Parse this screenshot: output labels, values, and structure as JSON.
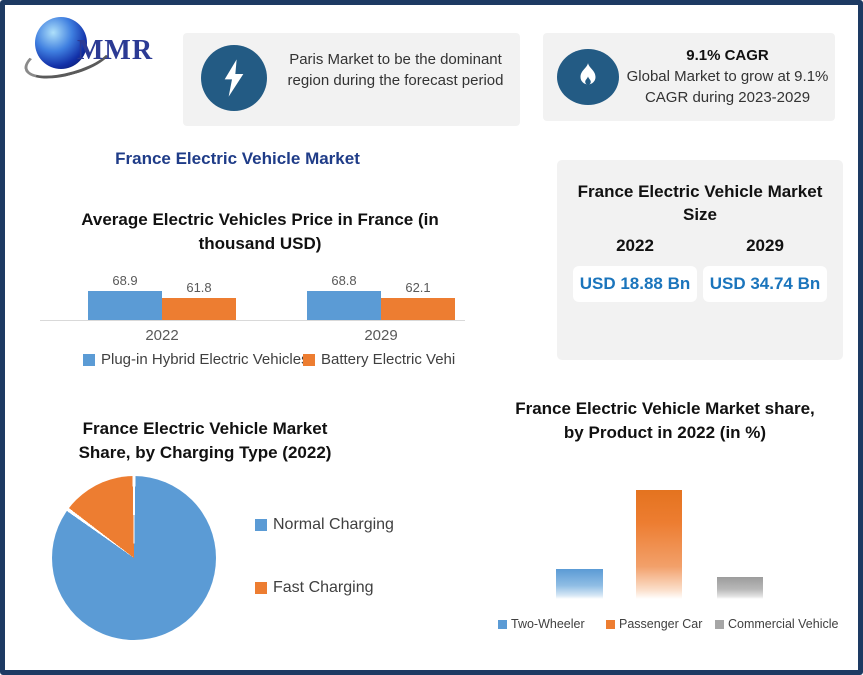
{
  "brand": {
    "logo_text": "MMR"
  },
  "callouts": {
    "paris": {
      "icon": "lightning-icon",
      "text": "Paris Market to be the dominant region during the forecast period"
    },
    "cagr": {
      "icon": "flame-icon",
      "heading": "9.1% CAGR",
      "body": "Global Market to grow at 9.1% CAGR during 2023-2029"
    }
  },
  "main_title": "France Electric Vehicle Market",
  "market_size_card": {
    "title": "France Electric Vehicle Market Size",
    "columns": [
      {
        "year": "2022",
        "value": "USD 18.88 Bn"
      },
      {
        "year": "2029",
        "value": "USD 34.74 Bn"
      }
    ]
  },
  "colors": {
    "border_navy": "#1d3a63",
    "title_navy": "#1f3c88",
    "icon_blue": "#235b84",
    "series_blue": "#5B9BD5",
    "series_orange": "#ED7D31",
    "series_gray": "#A6A6A6",
    "usd_blue": "#1b75bc",
    "card_bg": "#f2f2f2",
    "axis_gray": "#d9d9d9"
  },
  "chart_data": [
    {
      "type": "bar",
      "title": "Average Electric Vehicles Price in France (in thousand USD)",
      "categories": [
        "2022",
        "2029"
      ],
      "series": [
        {
          "name": "Plug-in Hybrid Electric Vehicles",
          "color": "#5B9BD5",
          "values": [
            68.9,
            68.8
          ]
        },
        {
          "name": "Battery Electric Vehi",
          "color": "#ED7D31",
          "values": [
            61.8,
            62.1
          ]
        }
      ],
      "data_labels": true,
      "ylim": [
        40,
        108
      ],
      "gridlines": false,
      "legend_position": "bottom"
    },
    {
      "type": "pie",
      "title": "France Electric Vehicle Market Share, by Charging Type (2022)",
      "labels": [
        "Normal Charging",
        "Fast Charging"
      ],
      "values": [
        85,
        15
      ],
      "colors": [
        "#5B9BD5",
        "#ED7D31"
      ],
      "legend_position": "right"
    },
    {
      "type": "bar",
      "title": "France Electric Vehicle Market share, by Product in 2022 (in %)",
      "categories": [
        "Two-Wheeler",
        "Passenger Car",
        "Commercial Vehicle"
      ],
      "values": [
        19,
        68,
        14
      ],
      "colors": [
        "#5B9BD5",
        "#ED7D31",
        "#A6A6A6"
      ],
      "data_labels": false,
      "gridlines": false,
      "legend_position": "bottom"
    }
  ]
}
